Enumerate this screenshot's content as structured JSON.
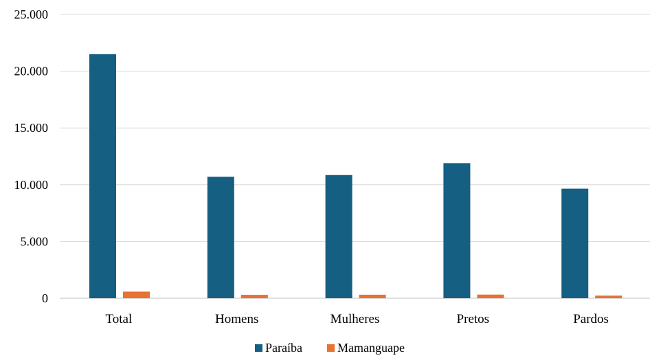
{
  "chart_data": {
    "type": "bar",
    "title": "",
    "xlabel": "",
    "ylabel": "",
    "categories": [
      "Total",
      "Homens",
      "Mulheres",
      "Pretos",
      "Pardos"
    ],
    "series": [
      {
        "name": "Paraíba",
        "color": "#155f82",
        "values": [
          21500,
          10700,
          10850,
          11900,
          9650
        ]
      },
      {
        "name": "Mamanguape",
        "color": "#e97132",
        "values": [
          580,
          300,
          310,
          320,
          230
        ]
      }
    ],
    "ylim": [
      0,
      25000
    ],
    "yticks": [
      0,
      5000,
      10000,
      15000,
      20000,
      25000
    ],
    "ytick_labels": [
      "0",
      "5.000",
      "10.000",
      "15.000",
      "20.000",
      "25.000"
    ],
    "grid": true,
    "gridline_color": "#d9d9d9",
    "legend_position": "bottom"
  }
}
